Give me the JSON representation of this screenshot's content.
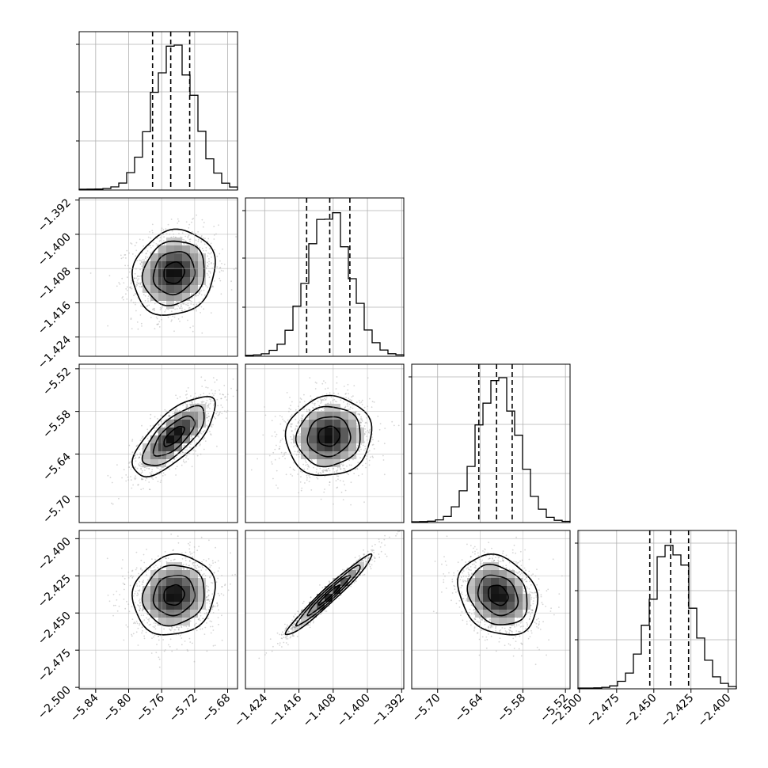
{
  "chart_data": {
    "type": "corner",
    "n_params": 4,
    "grid": true,
    "params": [
      {
        "ticks": [
          "−5.84",
          "−5.80",
          "−5.76",
          "−5.72",
          "−5.68"
        ],
        "tick_values": [
          -5.84,
          -5.8,
          -5.76,
          -5.72,
          -5.68
        ],
        "range": [
          -5.86,
          -5.668
        ],
        "mean": -5.745,
        "sigma": 0.025,
        "quantiles": [
          -5.771,
          -5.749,
          -5.726
        ]
      },
      {
        "ticks": [
          "−1.424",
          "−1.416",
          "−1.408",
          "−1.400",
          "−1.392"
        ],
        "tick_values": [
          -1.424,
          -1.416,
          -1.408,
          -1.4,
          -1.392
        ],
        "range": [
          -1.4285,
          -1.3915
        ],
        "mean": -1.409,
        "sigma": 0.005,
        "quantiles": [
          -1.4142,
          -1.4088,
          -1.4041
        ]
      },
      {
        "ticks": [
          "−5.70",
          "−5.64",
          "−5.58",
          "−5.52"
        ],
        "tick_values": [
          -5.7,
          -5.64,
          -5.58,
          -5.52
        ],
        "range": [
          -5.7365,
          -5.5135
        ],
        "mean": -5.615,
        "sigma": 0.028,
        "quantiles": [
          -5.642,
          -5.617,
          -5.595
        ]
      },
      {
        "ticks": [
          "−2.500",
          "−2.475",
          "−2.450",
          "−2.425",
          "−2.400"
        ],
        "tick_values": [
          -2.5,
          -2.475,
          -2.45,
          -2.425,
          -2.4
        ],
        "range": [
          -2.501,
          -2.3945
        ],
        "mean": -2.438,
        "sigma": 0.0135,
        "quantiles": [
          -2.4527,
          -2.4387,
          -2.4266
        ]
      }
    ],
    "correlations": [
      [
        1.0,
        0.12,
        0.72,
        0.1
      ],
      [
        0.12,
        1.0,
        0.06,
        0.97
      ],
      [
        0.72,
        0.06,
        1.0,
        -0.22
      ],
      [
        0.1,
        0.97,
        -0.22,
        1.0
      ]
    ],
    "contour_levels_sigma": [
      0.5,
      1.0,
      1.5,
      2.0
    ]
  }
}
